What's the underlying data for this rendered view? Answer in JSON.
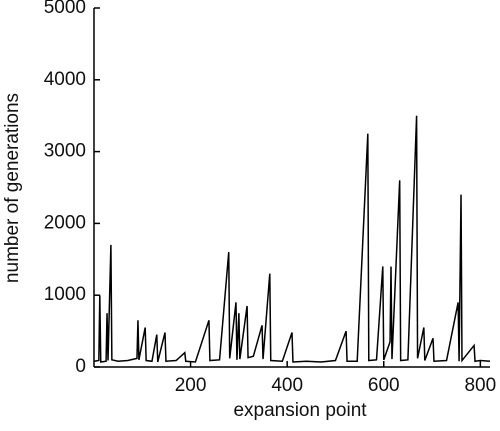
{
  "chart_data": {
    "type": "line",
    "xlabel": "expansion point",
    "ylabel": "number of generations",
    "x": [
      0,
      10,
      12,
      14,
      25,
      27,
      29,
      35,
      37,
      50,
      70,
      89,
      91,
      93,
      106,
      108,
      120,
      130,
      132,
      147,
      149,
      170,
      188,
      190,
      210,
      238,
      240,
      260,
      279,
      281,
      294,
      296,
      300,
      302,
      317,
      319,
      330,
      348,
      350,
      364,
      366,
      390,
      410,
      412,
      440,
      470,
      500,
      522,
      524,
      545,
      567,
      569,
      585,
      598,
      600,
      613,
      615,
      617,
      633,
      635,
      650,
      668,
      670,
      683,
      685,
      702,
      704,
      730,
      754,
      756,
      760,
      762,
      787,
      789,
      800,
      820
    ],
    "series": [
      {
        "color": "#000000",
        "values": [
          80,
          90,
          1000,
          70,
          80,
          750,
          90,
          1700,
          100,
          80,
          90,
          120,
          650,
          100,
          550,
          90,
          80,
          450,
          70,
          480,
          80,
          90,
          200,
          80,
          70,
          650,
          90,
          100,
          1600,
          120,
          900,
          100,
          750,
          110,
          850,
          130,
          150,
          580,
          110,
          1300,
          90,
          80,
          480,
          70,
          80,
          70,
          90,
          500,
          80,
          80,
          3250,
          90,
          100,
          1400,
          100,
          350,
          1400,
          110,
          2600,
          90,
          100,
          3500,
          120,
          550,
          90,
          400,
          80,
          90,
          900,
          80,
          2400,
          90,
          300,
          80,
          90,
          80
        ]
      }
    ],
    "xlim": [
      0,
      820
    ],
    "xticks": [
      200,
      400,
      600,
      800
    ],
    "ylim": [
      0,
      5000
    ],
    "yticks": [
      0,
      1000,
      2000,
      3000,
      4000,
      5000
    ]
  }
}
